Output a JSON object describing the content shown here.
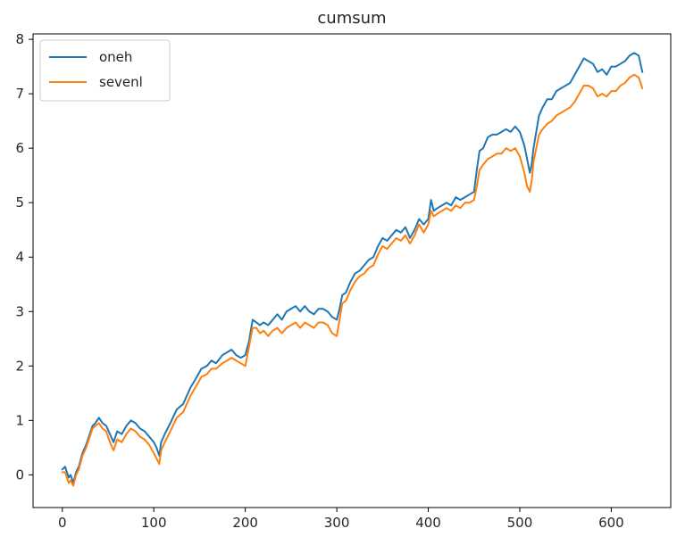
{
  "chart_data": {
    "type": "line",
    "title": "cumsum",
    "xlabel": "",
    "ylabel": "",
    "xlim": [
      -32,
      665
    ],
    "ylim": [
      -0.6,
      8.1
    ],
    "xticks": [
      0,
      100,
      200,
      300,
      400,
      500,
      600
    ],
    "yticks": [
      0,
      1,
      2,
      3,
      4,
      5,
      6,
      7,
      8
    ],
    "grid": false,
    "legend_position": "top-left",
    "series": [
      {
        "name": "oneh",
        "color": "#1f77b4",
        "x": [
          0,
          3,
          5,
          7,
          9,
          12,
          15,
          18,
          22,
          26,
          30,
          33,
          36,
          40,
          44,
          48,
          52,
          56,
          60,
          65,
          70,
          75,
          80,
          85,
          90,
          95,
          100,
          103,
          106,
          108,
          112,
          118,
          125,
          132,
          140,
          147,
          152,
          158,
          163,
          168,
          175,
          180,
          185,
          190,
          195,
          200,
          204,
          208,
          212,
          216,
          220,
          225,
          230,
          235,
          240,
          245,
          250,
          255,
          260,
          265,
          270,
          275,
          280,
          285,
          290,
          295,
          300,
          303,
          306,
          310,
          315,
          320,
          325,
          330,
          335,
          340,
          345,
          350,
          355,
          360,
          365,
          370,
          375,
          380,
          385,
          390,
          395,
          400,
          403,
          406,
          410,
          415,
          420,
          425,
          430,
          435,
          440,
          445,
          450,
          453,
          456,
          460,
          465,
          470,
          475,
          480,
          485,
          490,
          495,
          500,
          505,
          508,
          511,
          513,
          515,
          518,
          521,
          525,
          530,
          535,
          540,
          545,
          550,
          555,
          560,
          565,
          570,
          575,
          580,
          585,
          590,
          595,
          600,
          605,
          610,
          615,
          620,
          625,
          630,
          634
        ],
        "y": [
          0.1,
          0.15,
          0.05,
          -0.05,
          0.0,
          -0.15,
          0.05,
          0.15,
          0.4,
          0.55,
          0.75,
          0.9,
          0.95,
          1.05,
          0.95,
          0.9,
          0.75,
          0.6,
          0.8,
          0.75,
          0.9,
          1.0,
          0.95,
          0.85,
          0.8,
          0.7,
          0.6,
          0.5,
          0.35,
          0.6,
          0.75,
          0.95,
          1.2,
          1.3,
          1.6,
          1.8,
          1.95,
          2.0,
          2.1,
          2.05,
          2.2,
          2.25,
          2.3,
          2.2,
          2.15,
          2.2,
          2.45,
          2.85,
          2.8,
          2.75,
          2.8,
          2.75,
          2.85,
          2.95,
          2.85,
          3.0,
          3.05,
          3.1,
          3.0,
          3.1,
          3.0,
          2.95,
          3.05,
          3.05,
          3.0,
          2.9,
          2.85,
          3.05,
          3.3,
          3.35,
          3.55,
          3.7,
          3.75,
          3.85,
          3.95,
          4.0,
          4.2,
          4.35,
          4.3,
          4.4,
          4.5,
          4.45,
          4.55,
          4.35,
          4.5,
          4.7,
          4.6,
          4.7,
          5.05,
          4.85,
          4.9,
          4.95,
          5.0,
          4.95,
          5.1,
          5.05,
          5.1,
          5.15,
          5.2,
          5.6,
          5.95,
          6.0,
          6.2,
          6.25,
          6.25,
          6.3,
          6.35,
          6.3,
          6.4,
          6.3,
          6.05,
          5.8,
          5.55,
          5.7,
          6.0,
          6.3,
          6.6,
          6.75,
          6.9,
          6.9,
          7.05,
          7.1,
          7.15,
          7.2,
          7.35,
          7.5,
          7.65,
          7.6,
          7.55,
          7.4,
          7.45,
          7.35,
          7.5,
          7.5,
          7.55,
          7.6,
          7.7,
          7.75,
          7.7,
          7.4
        ]
      },
      {
        "name": "sevenl",
        "color": "#ff7f0e",
        "x": [
          0,
          3,
          5,
          7,
          9,
          12,
          15,
          18,
          22,
          26,
          30,
          33,
          36,
          40,
          44,
          48,
          52,
          56,
          60,
          65,
          70,
          75,
          80,
          85,
          90,
          95,
          100,
          103,
          106,
          108,
          112,
          118,
          125,
          132,
          140,
          147,
          152,
          158,
          163,
          168,
          175,
          180,
          185,
          190,
          195,
          200,
          204,
          208,
          212,
          216,
          220,
          225,
          230,
          235,
          240,
          245,
          250,
          255,
          260,
          265,
          270,
          275,
          280,
          285,
          290,
          295,
          300,
          303,
          306,
          310,
          315,
          320,
          325,
          330,
          335,
          340,
          345,
          350,
          355,
          360,
          365,
          370,
          375,
          380,
          385,
          390,
          395,
          400,
          403,
          406,
          410,
          415,
          420,
          425,
          430,
          435,
          440,
          445,
          450,
          453,
          456,
          460,
          465,
          470,
          475,
          480,
          485,
          490,
          495,
          500,
          505,
          508,
          511,
          513,
          515,
          518,
          521,
          525,
          530,
          535,
          540,
          545,
          550,
          555,
          560,
          565,
          570,
          575,
          580,
          585,
          590,
          595,
          600,
          605,
          610,
          615,
          620,
          625,
          630,
          634
        ],
        "y": [
          0.05,
          0.05,
          -0.05,
          -0.15,
          -0.1,
          -0.2,
          0.0,
          0.1,
          0.35,
          0.5,
          0.7,
          0.85,
          0.9,
          0.95,
          0.85,
          0.8,
          0.6,
          0.45,
          0.65,
          0.6,
          0.75,
          0.85,
          0.8,
          0.7,
          0.65,
          0.55,
          0.4,
          0.3,
          0.2,
          0.45,
          0.6,
          0.8,
          1.05,
          1.15,
          1.45,
          1.65,
          1.8,
          1.85,
          1.95,
          1.95,
          2.05,
          2.1,
          2.15,
          2.1,
          2.05,
          2.0,
          2.35,
          2.7,
          2.7,
          2.6,
          2.65,
          2.55,
          2.65,
          2.7,
          2.6,
          2.7,
          2.75,
          2.8,
          2.7,
          2.8,
          2.75,
          2.7,
          2.8,
          2.8,
          2.75,
          2.6,
          2.55,
          2.85,
          3.15,
          3.2,
          3.4,
          3.55,
          3.65,
          3.7,
          3.8,
          3.85,
          4.05,
          4.2,
          4.15,
          4.25,
          4.35,
          4.3,
          4.4,
          4.25,
          4.4,
          4.6,
          4.45,
          4.6,
          4.85,
          4.75,
          4.8,
          4.85,
          4.9,
          4.85,
          4.95,
          4.9,
          5.0,
          5.0,
          5.05,
          5.3,
          5.6,
          5.7,
          5.8,
          5.85,
          5.9,
          5.9,
          6.0,
          5.95,
          6.0,
          5.85,
          5.55,
          5.3,
          5.2,
          5.4,
          5.75,
          6.0,
          6.25,
          6.35,
          6.45,
          6.5,
          6.6,
          6.65,
          6.7,
          6.75,
          6.85,
          7.0,
          7.15,
          7.15,
          7.1,
          6.95,
          7.0,
          6.95,
          7.05,
          7.05,
          7.15,
          7.2,
          7.3,
          7.35,
          7.3,
          7.1
        ]
      }
    ]
  }
}
